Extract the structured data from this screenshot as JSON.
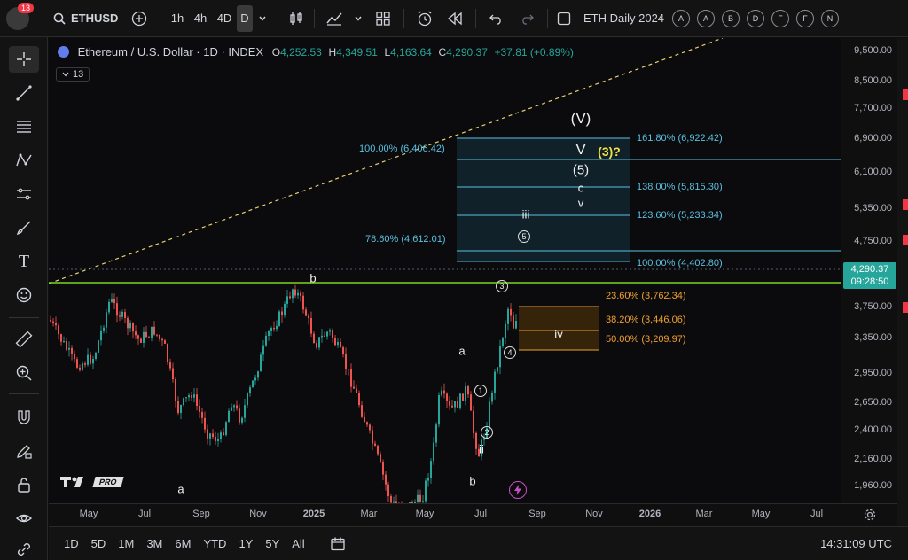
{
  "topbar": {
    "avatar_badge": "13",
    "symbol": "ETHUSD",
    "intervals": [
      "1h",
      "4h",
      "4D",
      "D"
    ],
    "layout_name": "ETH Daily 2024",
    "alert_letters": [
      "A",
      "A",
      "B",
      "D",
      "F",
      "F",
      "N"
    ]
  },
  "legend": {
    "title": "Ethereum / U.S. Dollar · 1D · INDEX",
    "o_label": "O",
    "o": "4,252.53",
    "h_label": "H",
    "h": "4,349.51",
    "l_label": "L",
    "l": "4,163.64",
    "c_label": "C",
    "c": "4,290.37",
    "change": "+37.81 (+0.89%)",
    "indicator_count": "13"
  },
  "price_axis": {
    "ticks": [
      "9,500.00",
      "8,500.00",
      "7,700.00",
      "6,900.00",
      "6,100.00",
      "5,350.00",
      "4,750.00",
      "3,750.00",
      "3,350.00",
      "2,950.00",
      "2,650.00",
      "2,400.00",
      "2,160.00",
      "1,960.00"
    ],
    "current_price": "4,290.37",
    "countdown": "09:28:50"
  },
  "time_axis": {
    "ticks": [
      "May",
      "Jul",
      "Sep",
      "Nov",
      "2025",
      "Mar",
      "May",
      "Jul",
      "Sep",
      "Nov",
      "2026",
      "Mar",
      "May",
      "Jul"
    ]
  },
  "fib_levels": {
    "upper": [
      {
        "label": "161.80% (6,922.42)"
      },
      {
        "label": "138.00% (5,815.30)"
      },
      {
        "label": "123.60% (5,233.34)"
      },
      {
        "label": "100.00% (4,402.80)"
      }
    ],
    "left": [
      {
        "label": "100.00% (6,406.42)"
      },
      {
        "label": "78.60% (4,612.01)"
      }
    ],
    "retracement": [
      {
        "label": "23.60% (3,762.34)"
      },
      {
        "label": "38.20% (3,446.06)"
      },
      {
        "label": "50.00% (3,209.97)"
      }
    ]
  },
  "wave_labels": {
    "big_v": "(V)",
    "v": "V",
    "three_q": "(3)?",
    "five": "(5)",
    "c": "c",
    "small_v": "v",
    "iii": "iii",
    "iv": "iv",
    "ii": "ii",
    "a1": "a",
    "a2": "a",
    "b1": "b",
    "b2": "b",
    "circ5": "5",
    "circ3": "3",
    "circ4": "4",
    "circ1": "1",
    "circ2": "2"
  },
  "watermark": "PRO",
  "bottombar": {
    "ranges": [
      "1D",
      "5D",
      "1M",
      "3M",
      "6M",
      "YTD",
      "1Y",
      "5Y",
      "All"
    ],
    "clock": "14:31:09 UTC"
  },
  "colors": {
    "up": "#26a69a",
    "down": "#ef5350",
    "fib_blue": "#5bc0de",
    "fib_orange": "#f0a030",
    "green_line": "#7ed321",
    "badge": "#f23645"
  }
}
